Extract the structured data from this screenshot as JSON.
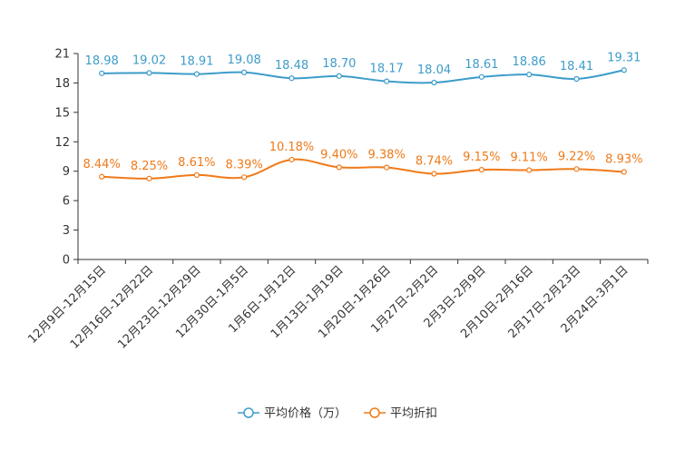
{
  "chart_data": {
    "type": "line",
    "title": "",
    "xlabel": "",
    "ylabel": "",
    "ylim": [
      0,
      21
    ],
    "yticks": [
      0,
      3,
      6,
      9,
      12,
      15,
      18,
      21
    ],
    "grid": false,
    "legend_position": "bottom",
    "categories": [
      "12月9日-12月15日",
      "12月16日-12月22日",
      "12月23日-12月29日",
      "12月30日-1月5日",
      "1月6日-1月12日",
      "1月13日-1月19日",
      "1月20日-1月26日",
      "1月27日-2月2日",
      "2月3日-2月9日",
      "2月10日-2月16日",
      "2月17日-2月23日",
      "2月24日-3月1日"
    ],
    "series": [
      {
        "name": "平均价格（万）",
        "color": "#3d9cca",
        "values": [
          18.98,
          19.02,
          18.91,
          19.08,
          18.48,
          18.7,
          18.17,
          18.04,
          18.61,
          18.86,
          18.41,
          19.31
        ],
        "labels": [
          "18.98",
          "19.02",
          "18.91",
          "19.08",
          "18.48",
          "18.70",
          "18.17",
          "18.04",
          "18.61",
          "18.86",
          "18.41",
          "19.31"
        ]
      },
      {
        "name": "平均折扣",
        "color": "#f07a19",
        "values": [
          8.44,
          8.25,
          8.61,
          8.39,
          10.18,
          9.4,
          9.38,
          8.74,
          9.15,
          9.11,
          9.22,
          8.93
        ],
        "labels": [
          "8.44%",
          "8.25%",
          "8.61%",
          "8.39%",
          "10.18%",
          "9.40%",
          "9.38%",
          "8.74%",
          "9.15%",
          "9.11%",
          "9.22%",
          "8.93%"
        ]
      }
    ]
  }
}
